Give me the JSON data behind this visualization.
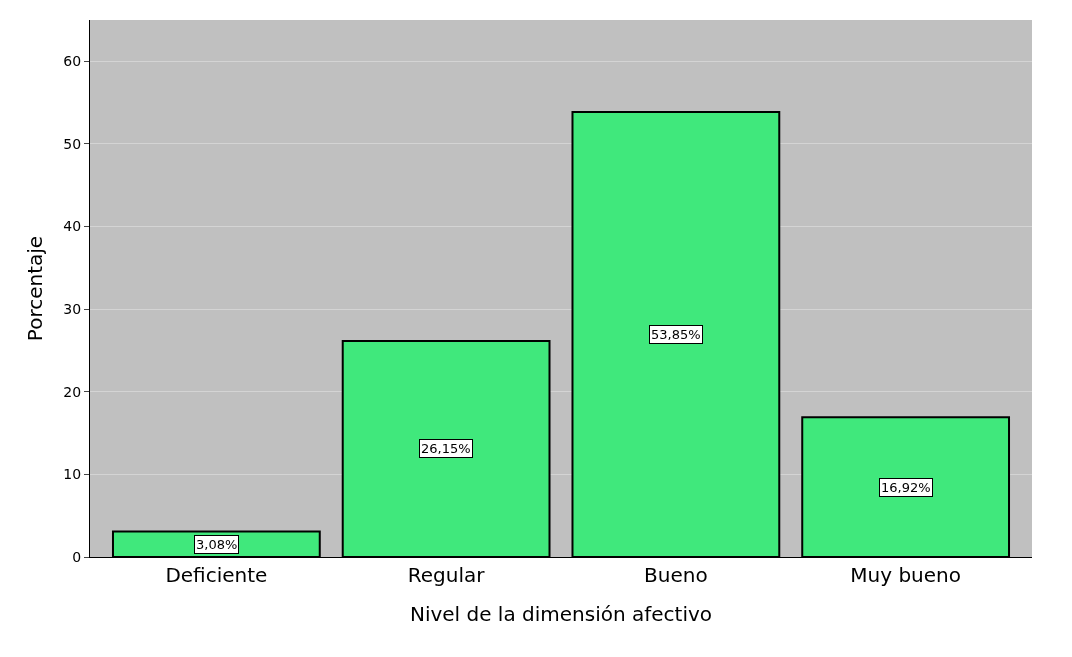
{
  "chart_data": {
    "type": "bar",
    "xlabel": "Nivel de la dimensión afectivo",
    "ylabel": "Porcentaje",
    "categories": [
      "Deficiente",
      "Regular",
      "Bueno",
      "Muy bueno"
    ],
    "values": [
      3.08,
      26.15,
      53.85,
      16.92
    ],
    "value_labels": [
      "3,08%",
      "26,15%",
      "53,85%",
      "16,92%"
    ],
    "color": "#40e87c",
    "ylim": [
      0,
      65
    ],
    "yticks": [
      0,
      10,
      20,
      30,
      40,
      50,
      60
    ],
    "grid": "y"
  }
}
